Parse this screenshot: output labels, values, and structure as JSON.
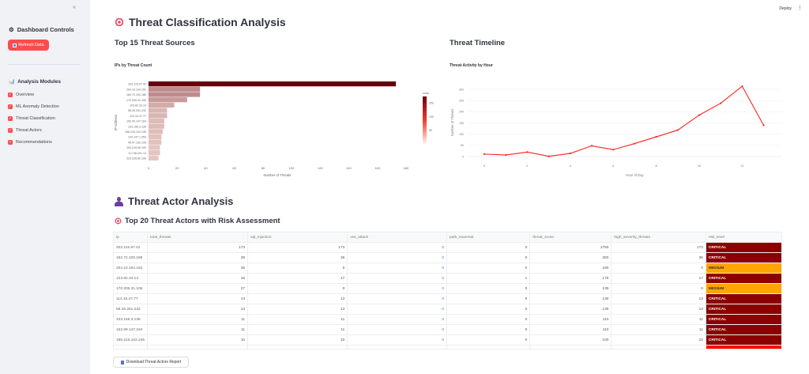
{
  "header": {
    "deploy_label": "Deploy",
    "menu_icon": "⋮"
  },
  "sidebar": {
    "collapse_icon": "«",
    "controls_title": "Dashboard Controls",
    "refresh_label": "Refresh Data",
    "modules_title": "Analysis Modules",
    "modules": [
      {
        "label": "Overview",
        "checked": true
      },
      {
        "label": "ML Anomaly Detection",
        "checked": true
      },
      {
        "label": "Threat Classification",
        "checked": true
      },
      {
        "label": "Threat Actors",
        "checked": true
      },
      {
        "label": "Recommendations",
        "checked": true
      }
    ]
  },
  "main": {
    "title": "Threat Classification Analysis",
    "sources_heading": "Top 15 Threat Sources",
    "timeline_heading": "Threat Timeline",
    "actor_heading": "Threat Actor Analysis",
    "actor_subheading": "Top 20 Threat Actors with Risk Assessment",
    "download_label": "Download Threat Actors Report"
  },
  "chart_data": [
    {
      "type": "bar",
      "orientation": "horizontal",
      "title": "IPs by Threat Count",
      "xlabel": "Number of Threats",
      "ylabel": "IP Address",
      "categories": [
        "203.115.97.42",
        "204.10.194.152",
        "182.72.100.186",
        "170.205.31.106",
        "103.82.33.14",
        "58.26.251.232",
        "114.10.47.77",
        "152.59.147.164",
        "103.155.3.139",
        "186.215.102.245",
        "103.147.1.253",
        "49.47.132.195",
        "103.219.90.100",
        "117.96.201.13",
        "223.228.80.199"
      ],
      "values": [
        173,
        36,
        36,
        27,
        18,
        13,
        13,
        11,
        11,
        10,
        9,
        9,
        8,
        8,
        7
      ],
      "xticks": [
        0,
        20,
        40,
        60,
        80,
        100,
        120,
        140,
        160,
        180
      ],
      "colorbar": {
        "title": "color",
        "ticks": [
          150,
          100,
          50
        ]
      }
    },
    {
      "type": "line",
      "title": "Threat Activity by Hour",
      "xlabel": "Hour of Day",
      "ylabel": "Number of Threats",
      "x": [
        0,
        1,
        2,
        3,
        4,
        5,
        6,
        7,
        8,
        9,
        10,
        11,
        12,
        13
      ],
      "values": [
        11,
        7,
        20,
        1,
        14,
        48,
        31,
        58,
        88,
        118,
        185,
        238,
        314,
        140
      ],
      "xticks": [
        0,
        2,
        4,
        6,
        8,
        10,
        12
      ],
      "yticks": [
        0,
        50,
        100,
        150,
        200,
        250,
        300
      ],
      "color": "#ff2020"
    }
  ],
  "table": {
    "columns": [
      "ip",
      "total_threats",
      "sql_injection",
      "xss_attack",
      "path_traversal",
      "threat_score",
      "high_severity_threats",
      "risk_level"
    ],
    "rows": [
      [
        "203.115.97.42",
        "173",
        "173",
        "0",
        "0",
        "1750",
        "173",
        "CRITICAL"
      ],
      [
        "182.72.100.186",
        "36",
        "36",
        "0",
        "0",
        "360",
        "36",
        "CRITICAL"
      ],
      [
        "204.10.194.152",
        "36",
        "0",
        "0",
        "0",
        "180",
        "0",
        "MEDIUM"
      ],
      [
        "103.82.33.14",
        "18",
        "17",
        "0",
        "1",
        "179",
        "17",
        "CRITICAL"
      ],
      [
        "170.205.31.106",
        "27",
        "0",
        "0",
        "0",
        "135",
        "0",
        "MEDIUM"
      ],
      [
        "114.10.47.77",
        "13",
        "13",
        "0",
        "0",
        "130",
        "13",
        "CRITICAL"
      ],
      [
        "58.26.251.232",
        "13",
        "13",
        "0",
        "0",
        "130",
        "13",
        "CRITICAL"
      ],
      [
        "103.155.3.139",
        "11",
        "11",
        "0",
        "0",
        "110",
        "11",
        "CRITICAL"
      ],
      [
        "152.59.147.164",
        "11",
        "11",
        "0",
        "0",
        "110",
        "11",
        "CRITICAL"
      ],
      [
        "186.215.102.245",
        "10",
        "10",
        "0",
        "0",
        "100",
        "10",
        "CRITICAL"
      ]
    ]
  }
}
